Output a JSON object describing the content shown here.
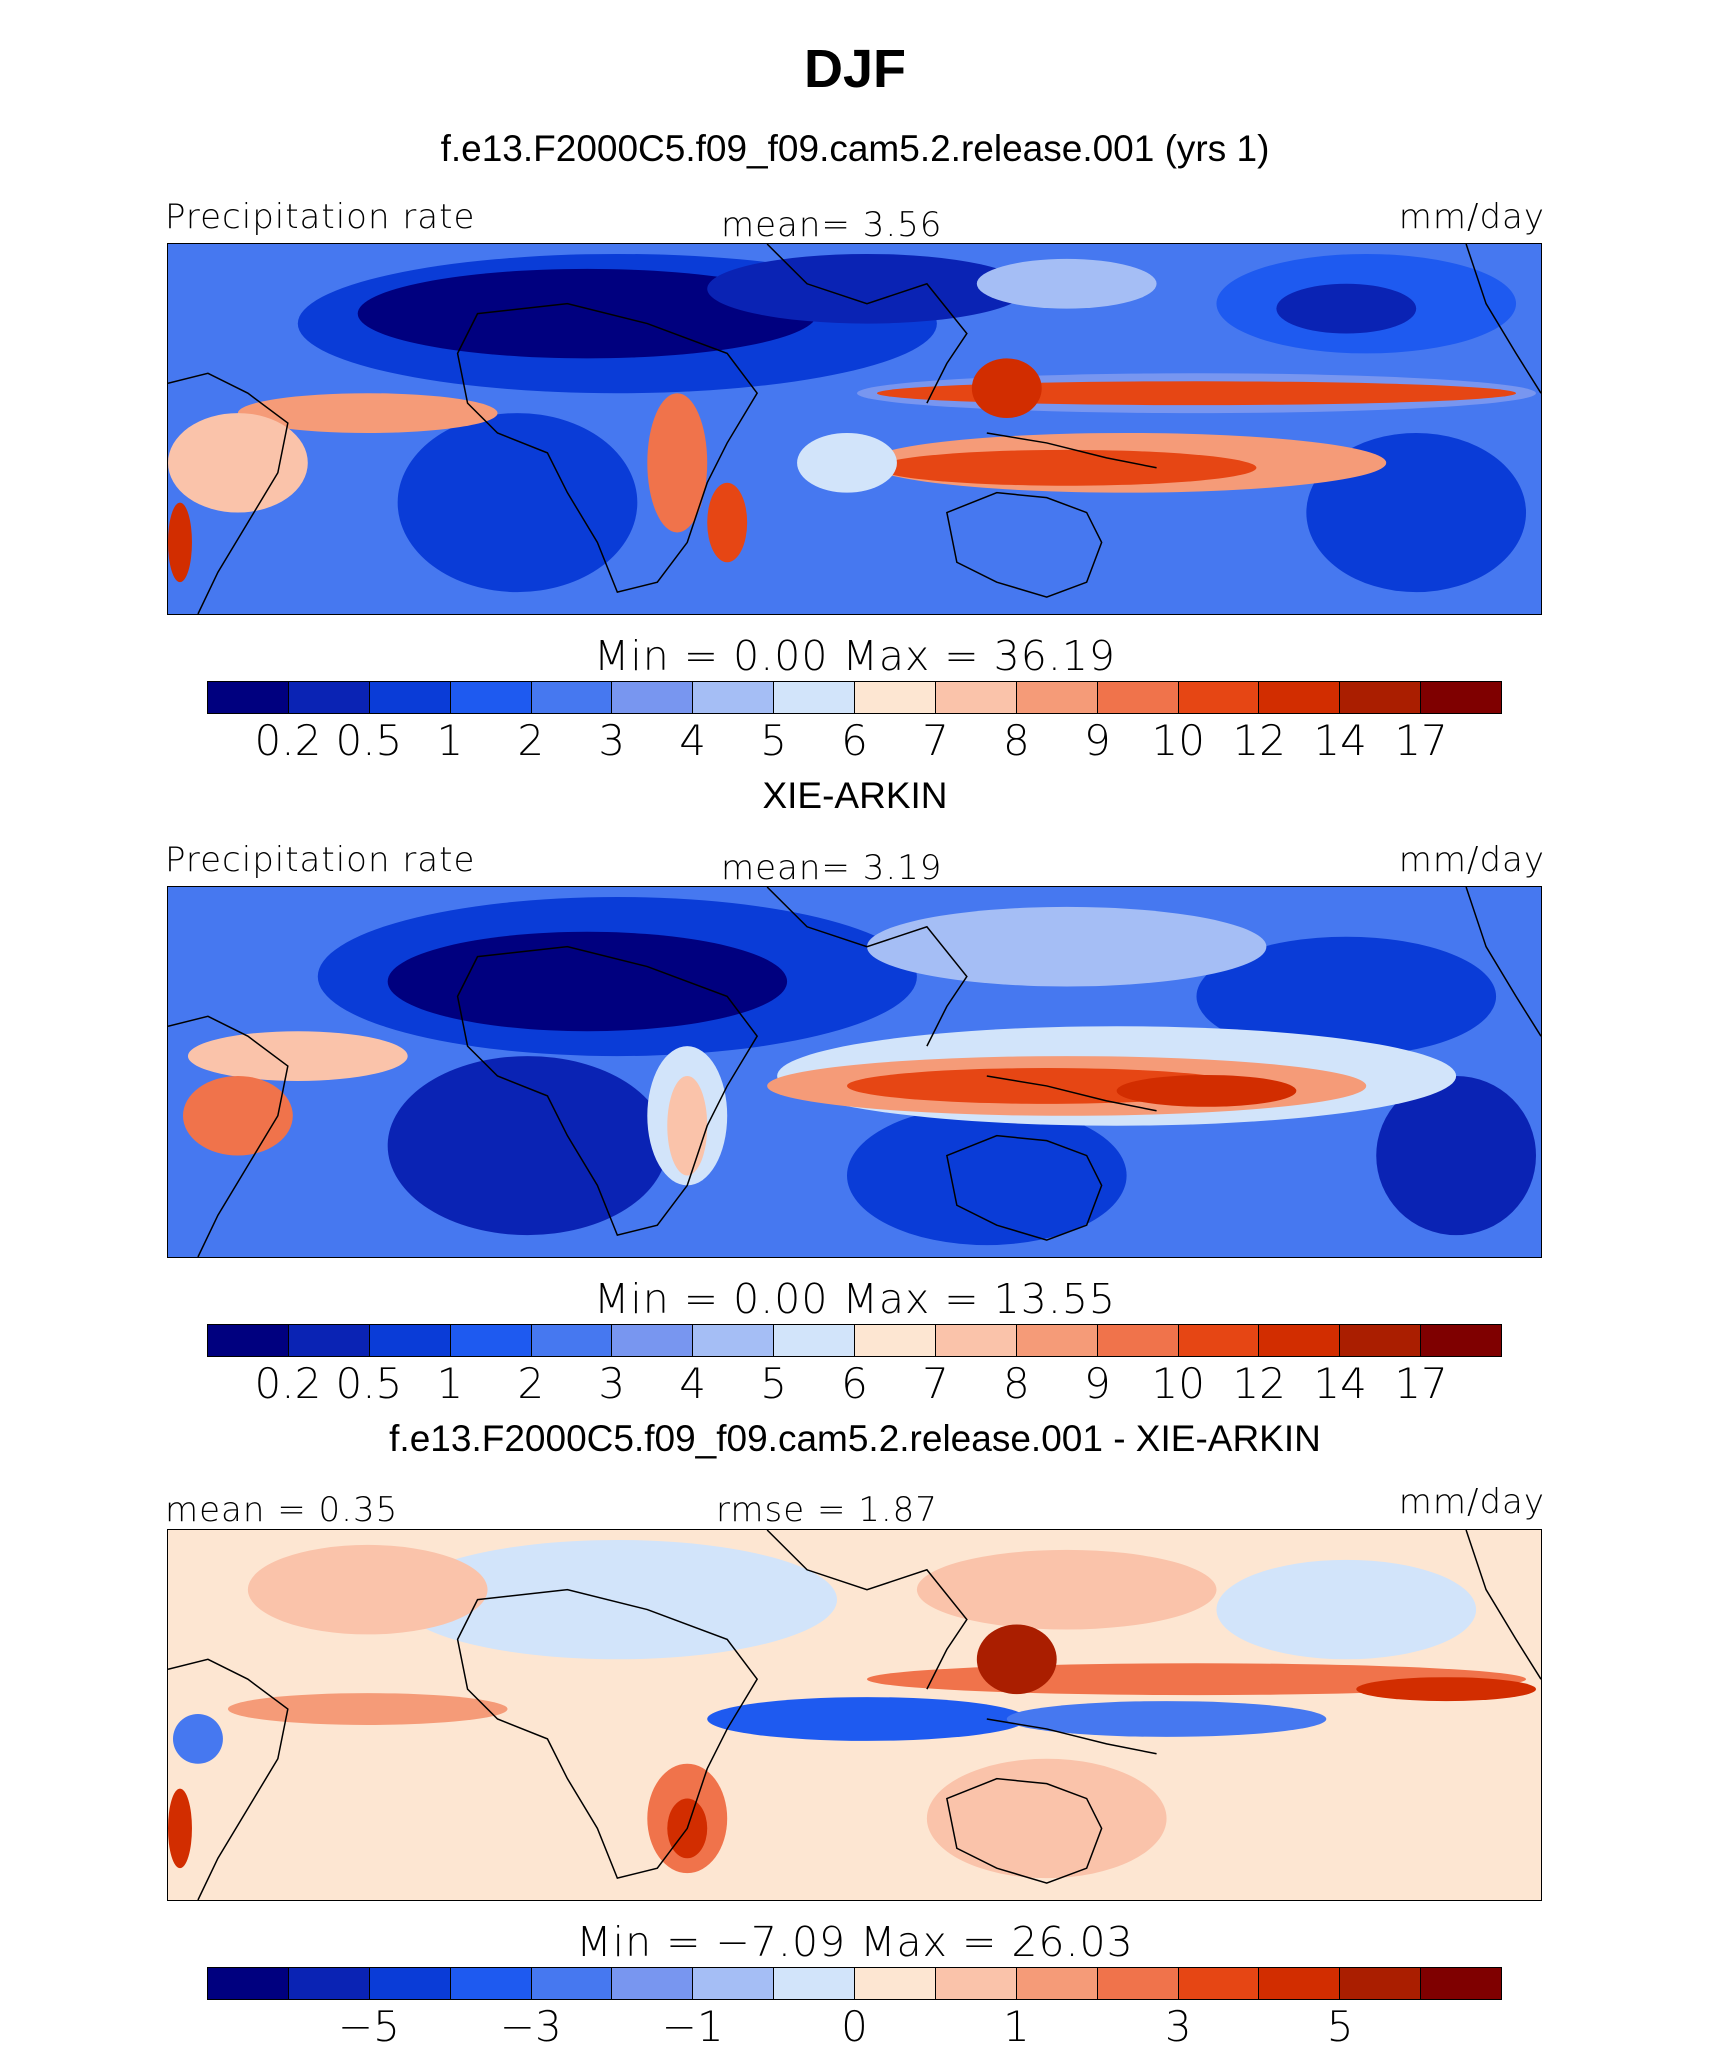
{
  "figure": {
    "title": "DJF",
    "panels": [
      {
        "id": "model",
        "subtitle": "f.e13.F2000C5.f09_f09.cam5.2.release.001 (yrs 1)",
        "left_label": "Precipitation rate",
        "center_label": "mean=    3.56",
        "right_label": "mm/day",
        "minmax": "Min  =     0.00  Max  =    36.19",
        "colorbar_type": "abs",
        "ticks": [
          "0.2",
          "0.5",
          "1",
          "2",
          "3",
          "4",
          "5",
          "6",
          "7",
          "8",
          "9",
          "10",
          "12",
          "14",
          "17"
        ]
      },
      {
        "id": "obs",
        "subtitle": "XIE-ARKIN",
        "left_label": "Precipitation rate",
        "center_label": "mean=    3.19",
        "right_label": "mm/day",
        "minmax": "Min  =     0.00  Max  =    13.55",
        "colorbar_type": "abs",
        "ticks": [
          "0.2",
          "0.5",
          "1",
          "2",
          "3",
          "4",
          "5",
          "6",
          "7",
          "8",
          "9",
          "10",
          "12",
          "14",
          "17"
        ]
      },
      {
        "id": "diff",
        "subtitle": "f.e13.F2000C5.f09_f09.cam5.2.release.001 - XIE-ARKIN",
        "left_label": "mean =    0.35",
        "center_label": "rmse =    1.87",
        "right_label": "mm/day",
        "minmax": "Min  =   −7.09  Max  =    26.03",
        "colorbar_type": "diff",
        "ticks": [
          "−5",
          "−3",
          "−1",
          "0",
          "1",
          "3",
          "5"
        ]
      }
    ],
    "colors": {
      "abs_scale": [
        "#00007f",
        "#0a23b4",
        "#0a3cd7",
        "#1e5af0",
        "#4678f0",
        "#7896f0",
        "#a5bef5",
        "#d2e4fa",
        "#fde6d2",
        "#fac3aa",
        "#f59b78",
        "#f0734b",
        "#e64614",
        "#d22d00",
        "#aa1e00",
        "#7f0000"
      ],
      "diff_scale": [
        "#00007f",
        "#0a23b4",
        "#0a3cd7",
        "#1e5af0",
        "#4678f0",
        "#7896f0",
        "#a5bef5",
        "#d2e4fa",
        "#fde6d2",
        "#fac3aa",
        "#f59b78",
        "#f0734b",
        "#e64614",
        "#d22d00",
        "#aa1e00",
        "#7f0000"
      ]
    }
  }
}
